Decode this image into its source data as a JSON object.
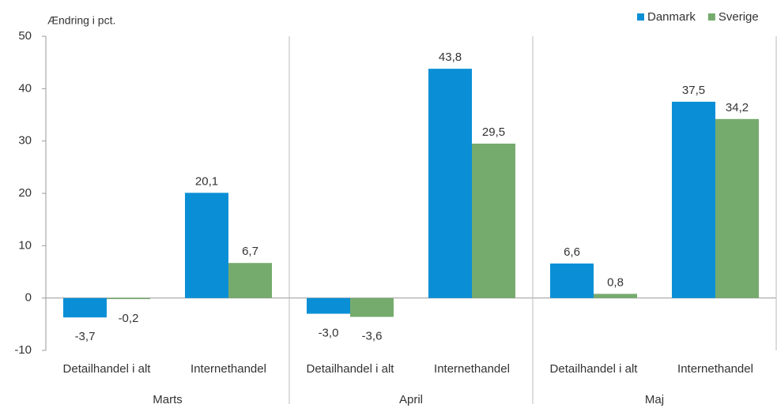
{
  "chart_data": {
    "type": "bar",
    "y_axis_label": "Ændring i pct.",
    "categories": [
      "Detailhandel i alt",
      "Internethandel",
      "Detailhandel i alt",
      "Internethandel",
      "Detailhandel i alt",
      "Internethandel"
    ],
    "groups": [
      "Marts",
      "April",
      "Maj"
    ],
    "series": [
      {
        "name": "Danmark",
        "color": "#0a8fd6",
        "values": [
          -3.7,
          20.1,
          -3.0,
          43.8,
          6.6,
          37.5
        ],
        "value_labels": [
          "-3,7",
          "20,1",
          "-3,0",
          "43,8",
          "6,6",
          "37,5"
        ]
      },
      {
        "name": "Sverige",
        "color": "#76ab6e",
        "values": [
          -0.2,
          6.7,
          -3.6,
          29.5,
          0.8,
          34.2
        ],
        "value_labels": [
          "-0,2",
          "6,7",
          "-3,6",
          "29,5",
          "0,8",
          "34,2"
        ]
      }
    ],
    "ylim": [
      -10,
      50
    ],
    "yticks": [
      -10,
      0,
      10,
      20,
      30,
      40,
      50
    ],
    "legend": "top-right"
  }
}
